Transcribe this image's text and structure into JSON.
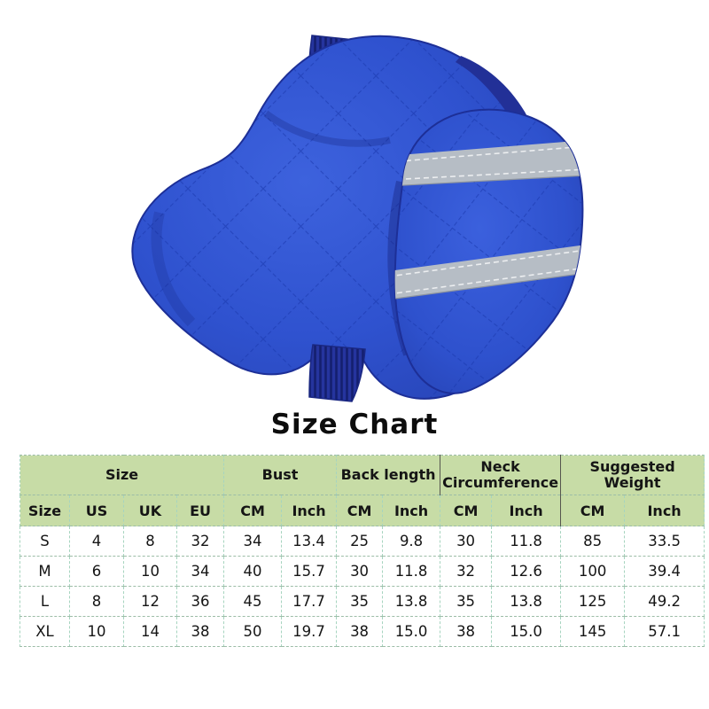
{
  "title": "Size Chart",
  "product_image": {
    "description": "Blue quilted dog jacket with ribbed collar, ribbed hem and two gray reflective stripes on the chest flap",
    "colors": {
      "jacket_blue": "#2f52cf",
      "jacket_blue_light": "#3d62dd",
      "jacket_blue_dark": "#2540ae",
      "quilt_seam_blue": "#1b38ad",
      "collar_navy": "#25349e",
      "collar_rib_dark": "#141f6f",
      "reflective_gray": "#b6bdc5",
      "stitch_white": "#eceef0"
    }
  },
  "size_chart": {
    "header_bg": "#c7dca6",
    "border_color_vertical": "#a6d4bf",
    "border_color_horizontal": "#9cbda7",
    "groups": [
      {
        "label": "Size",
        "span": 4
      },
      {
        "label": "Bust",
        "span": 2
      },
      {
        "label": "Back length",
        "span": 2
      },
      {
        "label": "Neck Circumference",
        "span": 2
      },
      {
        "label": "Suggested Weight",
        "span": 2
      }
    ],
    "columns": [
      "Size",
      "US",
      "UK",
      "EU",
      "CM",
      "Inch",
      "CM",
      "Inch",
      "CM",
      "Inch",
      "CM",
      "Inch"
    ],
    "rows": [
      [
        "S",
        "4",
        "8",
        "32",
        "34",
        "13.4",
        "25",
        "9.8",
        "30",
        "11.8",
        "85",
        "33.5"
      ],
      [
        "M",
        "6",
        "10",
        "34",
        "40",
        "15.7",
        "30",
        "11.8",
        "32",
        "12.6",
        "100",
        "39.4"
      ],
      [
        "L",
        "8",
        "12",
        "36",
        "45",
        "17.7",
        "35",
        "13.8",
        "35",
        "13.8",
        "125",
        "49.2"
      ],
      [
        "XL",
        "10",
        "14",
        "38",
        "50",
        "19.7",
        "38",
        "15.0",
        "38",
        "15.0",
        "145",
        "57.1"
      ]
    ]
  }
}
